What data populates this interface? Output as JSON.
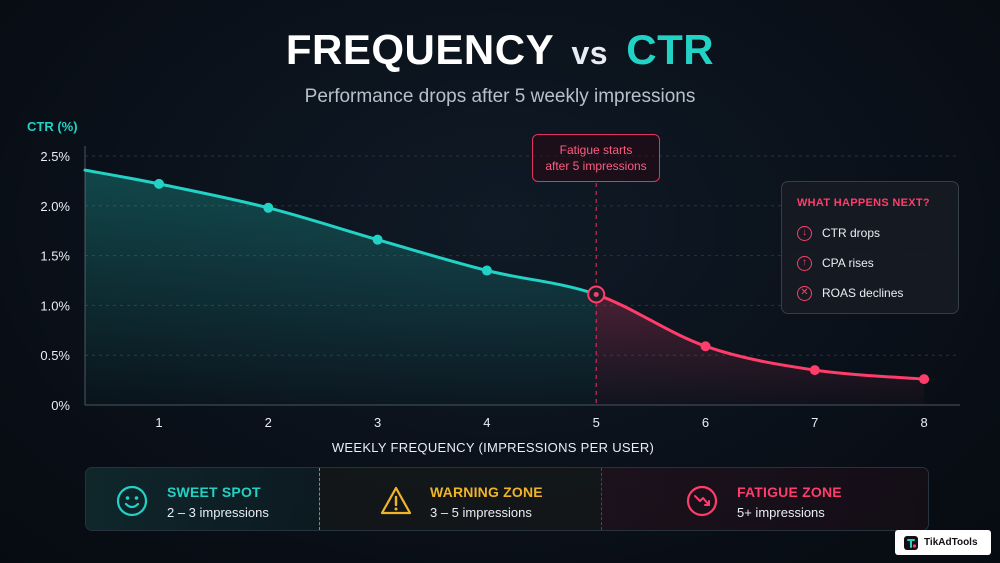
{
  "header": {
    "title_part1": "FREQUENCY",
    "title_vs": "vs",
    "title_part2": "CTR",
    "subtitle": "Performance drops after 5 weekly impressions"
  },
  "colors": {
    "teal": "#22d3c5",
    "red": "#ff3d6b",
    "amber": "#f0b429"
  },
  "chart_data": {
    "type": "line",
    "ylabel": "CTR (%)",
    "xlabel": "WEEKLY FREQUENCY (IMPRESSIONS PER USER)",
    "ylim": [
      0,
      2.5
    ],
    "yticks": [
      0,
      0.5,
      1.0,
      1.5,
      2.0,
      2.5
    ],
    "ytick_labels": [
      "0%",
      "0.5%",
      "1.0%",
      "1.5%",
      "2.0%",
      "2.5%"
    ],
    "xticks": [
      1,
      2,
      3,
      4,
      5,
      6,
      7,
      8
    ],
    "x": [
      1,
      2,
      3,
      4,
      5,
      6,
      7,
      8
    ],
    "y": [
      2.22,
      1.98,
      1.66,
      1.35,
      1.11,
      0.59,
      0.35,
      0.26
    ],
    "healthy_until": 5,
    "annotation": {
      "x": 5,
      "line1": "Fatigue starts",
      "line2": "after 5 impressions"
    },
    "grid": true
  },
  "next": {
    "title": "WHAT HAPPENS NEXT?",
    "items": [
      {
        "icon": "arrow-down-icon",
        "glyph": "↓",
        "label": "CTR drops"
      },
      {
        "icon": "arrow-up-icon",
        "glyph": "↑",
        "label": "CPA rises"
      },
      {
        "icon": "x-icon",
        "glyph": "✕",
        "label": "ROAS declines"
      }
    ]
  },
  "zones": [
    {
      "title": "SWEET SPOT",
      "desc": "2 – 3 impressions",
      "icon": "smile-icon"
    },
    {
      "title": "WARNING ZONE",
      "desc": "3 – 5 impressions",
      "icon": "warning-icon"
    },
    {
      "title": "FATIGUE ZONE",
      "desc": "5+ impressions",
      "icon": "trend-down-icon"
    }
  ],
  "logo": {
    "text": "TikAdTools"
  }
}
